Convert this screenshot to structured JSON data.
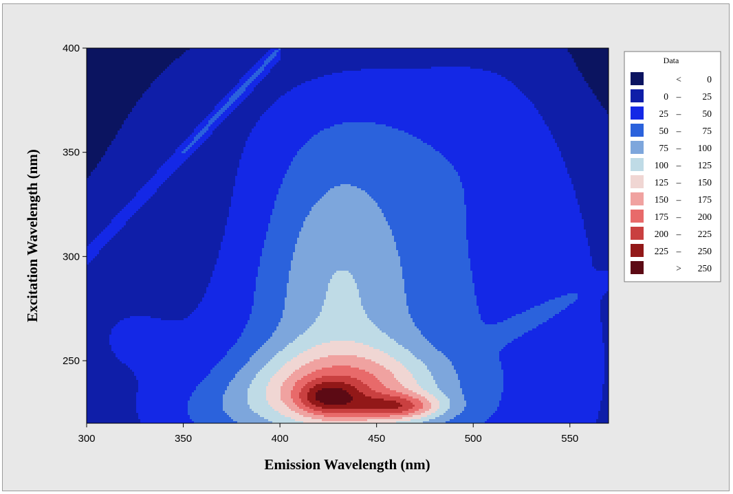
{
  "chart_data": {
    "type": "heatmap",
    "subtype": "filled-contour",
    "title": "",
    "xlabel": "Emission Wavelength (nm)",
    "ylabel": "Excitation Wavelength (nm)",
    "xlim": [
      300,
      570
    ],
    "ylim": [
      220,
      400
    ],
    "x_ticks": [
      "300",
      "350",
      "400",
      "450",
      "500",
      "550"
    ],
    "y_ticks": [
      "250",
      "300",
      "350",
      "400"
    ],
    "grid": false,
    "legend": {
      "title": "Data",
      "placement": "right",
      "entries": [
        {
          "op": "<",
          "from": "",
          "to": "0",
          "color": "#0b1460"
        },
        {
          "op": "",
          "from": "0",
          "to": "25",
          "color": "#0f1ea8"
        },
        {
          "op": "",
          "from": "25",
          "to": "50",
          "color": "#1428e6"
        },
        {
          "op": "",
          "from": "50",
          "to": "75",
          "color": "#2b62dc"
        },
        {
          "op": "",
          "from": "75",
          "to": "100",
          "color": "#7da6dc"
        },
        {
          "op": "",
          "from": "100",
          "to": "125",
          "color": "#bfdbe6"
        },
        {
          "op": "",
          "from": "125",
          "to": "150",
          "color": "#f0d6d3"
        },
        {
          "op": "",
          "from": "150",
          "to": "175",
          "color": "#f0a2a0"
        },
        {
          "op": "",
          "from": "175",
          "to": "200",
          "color": "#e86a6a"
        },
        {
          "op": "",
          "from": "200",
          "to": "225",
          "color": "#c94040"
        },
        {
          "op": "",
          "from": "225",
          "to": "250",
          "color": "#921818"
        },
        {
          "op": ">",
          "from": "",
          "to": "250",
          "color": "#5c0a14"
        }
      ]
    },
    "peaks": [
      {
        "x": 460,
        "y": 228,
        "value": 255
      },
      {
        "x": 425,
        "y": 232,
        "value": 235
      }
    ]
  }
}
